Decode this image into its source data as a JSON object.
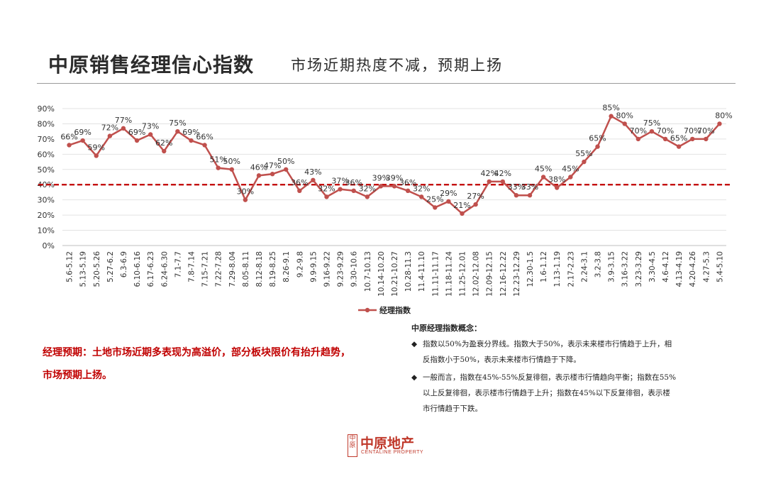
{
  "header": {
    "title": "中原销售经理信心指数",
    "subtitle": "市场近期热度不减，预期上扬"
  },
  "chart_data": {
    "type": "line",
    "categories": [
      "5.6-5.12",
      "5.13-5.19",
      "5.20-5.26",
      "5.27-6.2",
      "6.3-6.9",
      "6.10-6.16",
      "6.17-6.23",
      "6.24-6.30",
      "7.1-7.7",
      "7.8-7.14",
      "7.15-7.21",
      "7.22-7.28",
      "7.29-8.04",
      "8.05-8.11",
      "8.12-8.18",
      "8.19-8.25",
      "8.26-9.1",
      "9.2-9.8",
      "9.9-9.15",
      "9.16-9.22",
      "9.23-9.29",
      "9.30-10.6",
      "10.7-10.13",
      "10.14-10.20",
      "10.21-10.27",
      "10.28-11.3",
      "11.4-11.10",
      "11.11-11.17",
      "11.18-11.24",
      "11.25-12.01",
      "12.02-12.08",
      "12.09-12.15",
      "12.16-12.22",
      "12.23-12.29",
      "12.30-1.5",
      "1.6-1.12",
      "1.13-1.19",
      "2.17-2.23",
      "2.24-3.1",
      "3.2-3.8",
      "3.9-3.15",
      "3.16-3.22",
      "3.23-3.29",
      "3.30-4.5",
      "4.6-4.12",
      "4.13-4.19",
      "4.20-4.26",
      "4.27-5.3",
      "5.4-5.10"
    ],
    "series": [
      {
        "name": "经理指数",
        "values": [
          66,
          69,
          59,
          72,
          77,
          69,
          73,
          62,
          75,
          69,
          66,
          51,
          50,
          30,
          46,
          47,
          50,
          36,
          43,
          32,
          37,
          36,
          32,
          39,
          39,
          36,
          32,
          25,
          29,
          21,
          27,
          42,
          42,
          33,
          33,
          45,
          38,
          45,
          55,
          65,
          85,
          80,
          70,
          75,
          70,
          65,
          70,
          70,
          80
        ],
        "labels": [
          "66%",
          "69%",
          "59%",
          "72%",
          "77%",
          "69%",
          "73%",
          "62%",
          "75%",
          "69%",
          "66%",
          "51%",
          "50%",
          "30%",
          "46%",
          "47%",
          "50%",
          "36%",
          "43%",
          "32%",
          "37%",
          "36%",
          "32%",
          "39%",
          "39%",
          "36%",
          "32%",
          "25%",
          "29%",
          "21%",
          "27%",
          "42%",
          "42%",
          "33%",
          "33%",
          "45%",
          "38%",
          "45%",
          "55%",
          "65%",
          "85%",
          "80%",
          "70%",
          "75%",
          "70%",
          "65%",
          "70%",
          "70%",
          "80%"
        ],
        "color": "#c0504d"
      }
    ],
    "yticks": [
      "0%",
      "10%",
      "20%",
      "30%",
      "40%",
      "50%",
      "60%",
      "70%",
      "80%",
      "90%"
    ],
    "ylim": [
      0,
      90
    ],
    "reference_line": {
      "value": 40,
      "color": "#c00000",
      "style": "dashed"
    },
    "grid": true,
    "legend": "bottom-center",
    "ylabel": "",
    "xlabel": ""
  },
  "note": {
    "line1": "经理预期：土地市场近期多表现为高溢价，部分板块限价有抬升趋势，",
    "line2": "市场预期上扬。",
    "color": "#c00000"
  },
  "definition": {
    "title": "中原经理指数概念：",
    "bullet": "◆",
    "items": [
      {
        "lines": [
          "指数以50%为盈衰分界线。指数大于50%，表示未来楼市行情趋于上升，相",
          "反指数小于50%，表示未来楼市行情趋于下降。"
        ]
      },
      {
        "lines": [
          "一般而言，指数在45%-55%反复徘徊，表示楼市行情趋向平衡；指数在55%",
          "以上反复徘徊，表示楼市行情趋于上升；指数在45%以下反复徘徊，表示楼",
          "市行情趋于下跌。"
        ]
      }
    ]
  },
  "logo": {
    "mark": "中原",
    "name_cn": "中原地产",
    "name_en": "CENTALINE PROPERTY",
    "color": "#c0392b"
  }
}
